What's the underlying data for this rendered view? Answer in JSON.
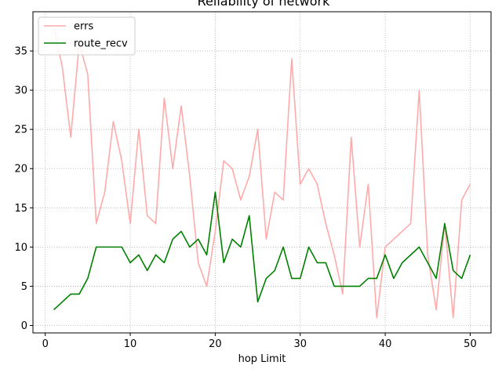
{
  "chart_data": {
    "type": "line",
    "title": "Reliability of network",
    "xlabel": "hop Limit",
    "ylabel": "",
    "xlim": [
      -1.45,
      52.45
    ],
    "ylim": [
      -0.95,
      40
    ],
    "xticks": [
      0,
      10,
      20,
      30,
      40,
      50
    ],
    "yticks": [
      0,
      5,
      10,
      15,
      20,
      25,
      30,
      35
    ],
    "grid": true,
    "legend_position": "top-left",
    "x": [
      1,
      2,
      3,
      4,
      5,
      6,
      7,
      8,
      9,
      10,
      11,
      12,
      13,
      14,
      15,
      16,
      17,
      18,
      19,
      20,
      21,
      22,
      23,
      24,
      25,
      26,
      27,
      28,
      29,
      30,
      31,
      32,
      33,
      34,
      35,
      36,
      37,
      38,
      39,
      40,
      41,
      42,
      43,
      44,
      45,
      46,
      47,
      48,
      49,
      50
    ],
    "series": [
      {
        "name": "errs",
        "color": "#ffaaaa",
        "values": [
          38,
          33,
          24,
          36,
          32,
          13,
          17,
          26,
          21,
          13,
          25,
          14,
          13,
          29,
          20,
          28,
          19,
          8,
          5,
          12,
          21,
          20,
          16,
          19,
          25,
          11,
          17,
          16,
          34,
          18,
          20,
          18,
          13,
          9,
          4,
          24,
          10,
          18,
          1,
          10,
          11,
          12,
          13,
          30,
          9,
          2,
          13,
          1,
          16,
          18
        ]
      },
      {
        "name": "route_recv",
        "color": "#008000",
        "values": [
          2,
          3,
          4,
          4,
          6,
          10,
          10,
          10,
          10,
          8,
          9,
          7,
          9,
          8,
          11,
          12,
          10,
          11,
          9,
          17,
          8,
          11,
          10,
          14,
          3,
          6,
          7,
          10,
          6,
          6,
          10,
          8,
          8,
          5,
          5,
          5,
          5,
          6,
          6,
          9,
          6,
          8,
          9,
          10,
          8,
          6,
          13,
          7,
          6,
          9
        ]
      }
    ]
  }
}
